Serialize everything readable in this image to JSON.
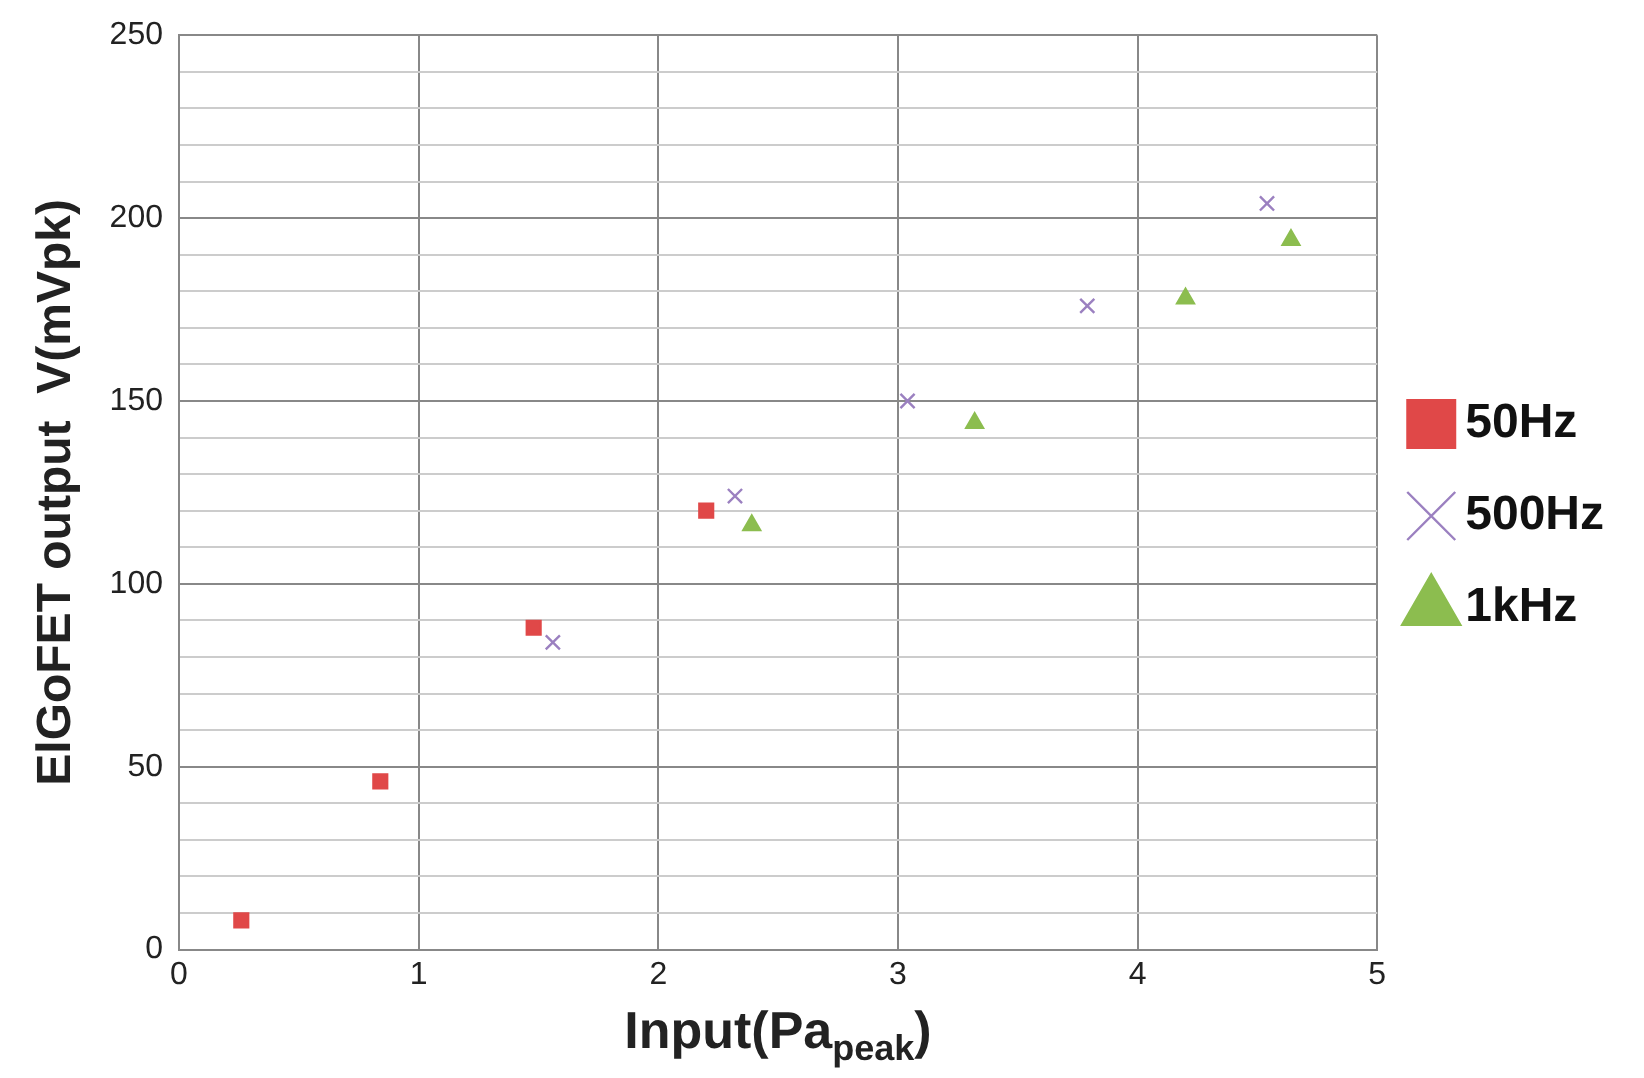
{
  "chart_data": {
    "type": "scatter",
    "xlabel": "Input(Pa$_{peak}$)",
    "ylabel": "ElGoFET output  V(mVpk)",
    "xlim": [
      0,
      5
    ],
    "xticks": [
      0,
      1,
      2,
      3,
      4,
      5
    ],
    "ylim": [
      0,
      250
    ],
    "yticks": [
      0,
      {
        "value": 10,
        "label": null
      },
      {
        "value": 20,
        "label": null
      },
      {
        "value": 30,
        "label": null
      },
      {
        "value": 40,
        "label": null
      },
      50,
      {
        "value": 60,
        "label": null
      },
      {
        "value": 70,
        "label": null
      },
      {
        "value": 80,
        "label": null
      },
      {
        "value": 90,
        "label": null
      },
      100,
      {
        "value": 110,
        "label": null
      },
      {
        "value": 120,
        "label": null
      },
      {
        "value": 130,
        "label": null
      },
      {
        "value": 140,
        "label": null
      },
      150,
      {
        "value": 160,
        "label": null
      },
      {
        "value": 170,
        "label": null
      },
      {
        "value": 180,
        "label": null
      },
      {
        "value": 190,
        "label": null
      },
      200,
      {
        "value": 210,
        "label": null
      },
      {
        "value": 220,
        "label": null
      },
      {
        "value": 230,
        "label": null
      },
      {
        "value": 240,
        "label": null
      },
      250
    ],
    "grid": true,
    "legend": "right",
    "series": [
      {
        "name": "50Hz",
        "color": "#e04848",
        "marker": "square",
        "x": [
          0.26,
          0.84,
          1.48,
          2.2
        ],
        "values": [
          8,
          46,
          88,
          120
        ]
      },
      {
        "name": "500Hz",
        "color": "#9b80c0",
        "marker": "cross",
        "x": [
          1.56,
          2.32,
          3.04,
          3.79,
          4.54
        ],
        "values": [
          84,
          124,
          150,
          176,
          204
        ]
      },
      {
        "name": "1kHz",
        "color": "#8cbd4f",
        "marker": "triangle",
        "x": [
          2.39,
          3.32,
          4.2,
          4.64
        ],
        "values": [
          116,
          144,
          178,
          194
        ]
      }
    ]
  }
}
